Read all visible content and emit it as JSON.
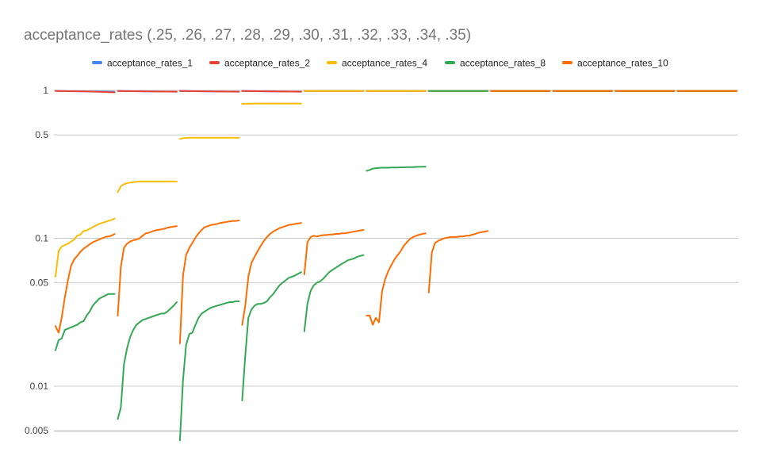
{
  "chart_data": {
    "type": "line",
    "title": "acceptance_rates (.25, .26, .27, .28, .29, .30, .31, .32, .33, .34, .35)",
    "xlabel": "",
    "ylabel": "",
    "y_scale": "log",
    "ylim": [
      0.004,
      1.2
    ],
    "y_ticks": [
      {
        "value": 1,
        "label": "1"
      },
      {
        "value": 0.5,
        "label": "0.5"
      },
      {
        "value": 0.1,
        "label": "0.1"
      },
      {
        "value": 0.05,
        "label": "0.05"
      },
      {
        "value": 0.01,
        "label": "0.01"
      },
      {
        "value": 0.005,
        "label": "0.005"
      }
    ],
    "grid": true,
    "legend_position": "top",
    "segments": [
      "0.25",
      "0.26",
      "0.27",
      "0.28",
      "0.29",
      "0.30",
      "0.31",
      "0.32",
      "0.33",
      "0.34",
      "0.35"
    ],
    "points_per_segment": 20,
    "series": [
      {
        "name": "acceptance_rates_1",
        "color": "#4285F4",
        "segments": [
          [
            0.99,
            0.985,
            0.98
          ],
          [
            0.99,
            0.985,
            0.98
          ],
          [
            0.99,
            0.985,
            0.98
          ],
          [
            0.99,
            0.985,
            0.98
          ],
          [
            0.99,
            0.99,
            0.99
          ],
          [
            0.99,
            0.99,
            0.99
          ],
          [
            0.99,
            0.99,
            0.99
          ],
          [
            0.99,
            0.99,
            0.99
          ],
          [
            0.99,
            0.99,
            0.99
          ],
          [
            0.99,
            0.99,
            0.99
          ],
          [
            0.99,
            0.99,
            0.99
          ]
        ]
      },
      {
        "name": "acceptance_rates_2",
        "color": "#EA4335",
        "segments": [
          [
            0.99,
            0.985,
            0.97
          ],
          [
            0.99,
            0.985,
            0.98
          ],
          [
            0.99,
            0.985,
            0.98
          ],
          [
            0.99,
            0.985,
            0.98
          ],
          [
            0.99,
            0.99,
            0.99
          ],
          [
            0.99,
            0.99,
            0.99
          ],
          [
            0.99,
            0.99,
            0.99
          ],
          [
            0.99,
            0.99,
            0.99
          ],
          [
            0.99,
            0.99,
            0.99
          ],
          [
            0.99,
            0.99,
            0.99
          ],
          [
            0.99,
            0.99,
            0.99
          ]
        ]
      },
      {
        "name": "acceptance_rates_4",
        "color": "#FBBC04",
        "segments": [
          [
            0.055,
            0.082,
            0.088,
            0.09,
            0.092,
            0.095,
            0.098,
            0.104,
            0.106,
            0.112,
            0.113,
            0.116,
            0.119,
            0.122,
            0.125,
            0.127,
            0.129,
            0.131,
            0.133,
            0.136
          ],
          [
            0.205,
            0.225,
            0.232,
            0.236,
            0.238,
            0.24,
            0.241,
            0.242,
            0.242,
            0.242,
            0.242,
            0.242,
            0.242,
            0.242,
            0.242,
            0.242,
            0.242,
            0.242,
            0.242,
            0.242
          ],
          [
            0.47,
            0.475,
            0.477,
            0.478,
            0.478,
            0.478,
            0.478,
            0.478,
            0.478,
            0.478,
            0.478,
            0.478,
            0.478,
            0.478,
            0.478,
            0.478,
            0.478,
            0.478,
            0.478,
            0.478
          ],
          [
            0.81,
            0.812,
            0.813,
            0.814,
            0.815,
            0.815,
            0.815,
            0.815,
            0.815,
            0.815,
            0.815,
            0.815,
            0.815,
            0.815,
            0.815,
            0.815,
            0.815,
            0.815,
            0.815,
            0.815
          ],
          [
            0.99,
            0.99,
            0.99
          ],
          [
            0.99,
            0.99,
            0.99
          ],
          [
            0.99,
            0.99,
            0.99
          ],
          [
            0.99,
            0.99,
            0.99
          ],
          [
            0.99,
            0.99,
            0.99
          ],
          [
            0.99,
            0.99,
            0.99
          ],
          [
            0.99,
            0.99,
            0.99
          ]
        ]
      },
      {
        "name": "acceptance_rates_8",
        "color": "#34A853",
        "segments": [
          [
            0.0175,
            0.0205,
            0.021,
            0.024,
            0.0245,
            0.025,
            0.0255,
            0.026,
            0.027,
            0.0275,
            0.03,
            0.032,
            0.035,
            0.037,
            0.039,
            0.04,
            0.041,
            0.042,
            0.042,
            0.042
          ],
          [
            0.006,
            0.0072,
            0.014,
            0.018,
            0.0215,
            0.024,
            0.026,
            0.027,
            0.028,
            0.0285,
            0.029,
            0.0295,
            0.03,
            0.0305,
            0.031,
            0.031,
            0.032,
            0.0335,
            0.035,
            0.037
          ],
          [
            0.0043,
            0.011,
            0.019,
            0.0225,
            0.023,
            0.026,
            0.029,
            0.031,
            0.032,
            0.033,
            0.034,
            0.0345,
            0.035,
            0.0355,
            0.036,
            0.0365,
            0.037,
            0.037,
            0.0375,
            0.0375
          ],
          [
            0.008,
            0.016,
            0.029,
            0.033,
            0.035,
            0.036,
            0.036,
            0.0365,
            0.0375,
            0.04,
            0.042,
            0.045,
            0.048,
            0.05,
            0.052,
            0.054,
            0.055,
            0.056,
            0.0575,
            0.059
          ],
          [
            0.0235,
            0.036,
            0.044,
            0.048,
            0.05,
            0.051,
            0.053,
            0.056,
            0.059,
            0.061,
            0.063,
            0.065,
            0.067,
            0.069,
            0.071,
            0.072,
            0.073,
            0.075,
            0.076,
            0.077
          ],
          [
            0.286,
            0.29,
            0.296,
            0.298,
            0.299,
            0.3,
            0.3,
            0.3,
            0.301,
            0.301,
            0.301,
            0.302,
            0.302,
            0.303,
            0.303,
            0.303,
            0.304,
            0.304,
            0.305,
            0.305
          ],
          [
            0.99,
            0.99,
            0.99
          ],
          [
            0.99,
            0.99,
            0.99
          ],
          [
            0.99,
            0.99,
            0.99
          ],
          [
            0.99,
            0.99,
            0.99
          ],
          [
            0.99,
            0.99,
            0.99
          ]
        ]
      },
      {
        "name": "acceptance_rates_10",
        "color": "#FF6D01",
        "segments": [
          [
            0.0255,
            0.023,
            0.029,
            0.04,
            0.052,
            0.065,
            0.072,
            0.076,
            0.081,
            0.085,
            0.088,
            0.091,
            0.094,
            0.096,
            0.098,
            0.1,
            0.102,
            0.103,
            0.104,
            0.107
          ],
          [
            0.03,
            0.064,
            0.086,
            0.092,
            0.095,
            0.097,
            0.098,
            0.1,
            0.104,
            0.108,
            0.109,
            0.111,
            0.113,
            0.114,
            0.115,
            0.116,
            0.118,
            0.119,
            0.12,
            0.121
          ],
          [
            0.0195,
            0.056,
            0.077,
            0.086,
            0.093,
            0.101,
            0.108,
            0.114,
            0.119,
            0.121,
            0.123,
            0.124,
            0.125,
            0.127,
            0.128,
            0.129,
            0.13,
            0.131,
            0.131,
            0.132
          ],
          [
            0.026,
            0.035,
            0.055,
            0.068,
            0.075,
            0.082,
            0.089,
            0.096,
            0.102,
            0.107,
            0.111,
            0.114,
            0.117,
            0.119,
            0.121,
            0.123,
            0.124,
            0.125,
            0.126,
            0.127
          ],
          [
            0.057,
            0.094,
            0.102,
            0.104,
            0.103,
            0.104,
            0.105,
            0.105,
            0.106,
            0.106,
            0.107,
            0.107,
            0.108,
            0.108,
            0.109,
            0.11,
            0.111,
            0.112,
            0.113,
            0.114
          ],
          [
            0.03,
            0.03,
            0.026,
            0.029,
            0.027,
            0.044,
            0.053,
            0.06,
            0.066,
            0.072,
            0.077,
            0.082,
            0.089,
            0.094,
            0.099,
            0.102,
            0.104,
            0.106,
            0.107,
            0.108
          ],
          [
            0.043,
            0.08,
            0.093,
            0.096,
            0.098,
            0.1,
            0.101,
            0.102,
            0.102,
            0.102,
            0.103,
            0.103,
            0.104,
            0.104,
            0.106,
            0.107,
            0.109,
            0.11,
            0.111,
            0.112
          ],
          [
            0.99,
            0.99,
            0.99
          ],
          [
            0.99,
            0.99,
            0.99
          ],
          [
            0.99,
            0.99,
            0.99
          ],
          [
            0.99,
            0.99,
            0.99
          ]
        ]
      }
    ]
  }
}
